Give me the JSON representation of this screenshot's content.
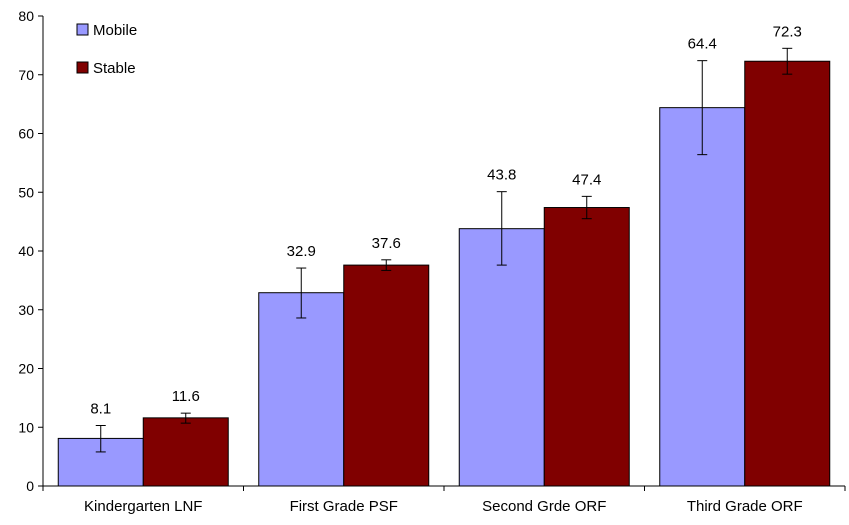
{
  "chart_data": {
    "type": "bar",
    "title": "",
    "xlabel": "",
    "ylabel": "",
    "ylim": [
      0,
      80
    ],
    "yticks": [
      0,
      10,
      20,
      30,
      40,
      50,
      60,
      70,
      80
    ],
    "grid": false,
    "legend_position": "top-left",
    "categories": [
      "Kindergarten LNF",
      "First Grade PSF",
      "Second Grde ORF",
      "Third Grade ORF"
    ],
    "series": [
      {
        "name": "Mobile",
        "color": "#9999ff",
        "values": [
          8.1,
          32.9,
          43.8,
          64.4
        ],
        "error_low": [
          5.8,
          28.6,
          37.6,
          56.4
        ],
        "error_high": [
          10.3,
          37.1,
          50.1,
          72.4
        ]
      },
      {
        "name": "Stable",
        "color": "#800000",
        "values": [
          11.6,
          37.6,
          47.4,
          72.3
        ],
        "error_low": [
          10.7,
          36.7,
          45.5,
          70.1
        ],
        "error_high": [
          12.4,
          38.5,
          49.3,
          74.5
        ]
      }
    ]
  }
}
